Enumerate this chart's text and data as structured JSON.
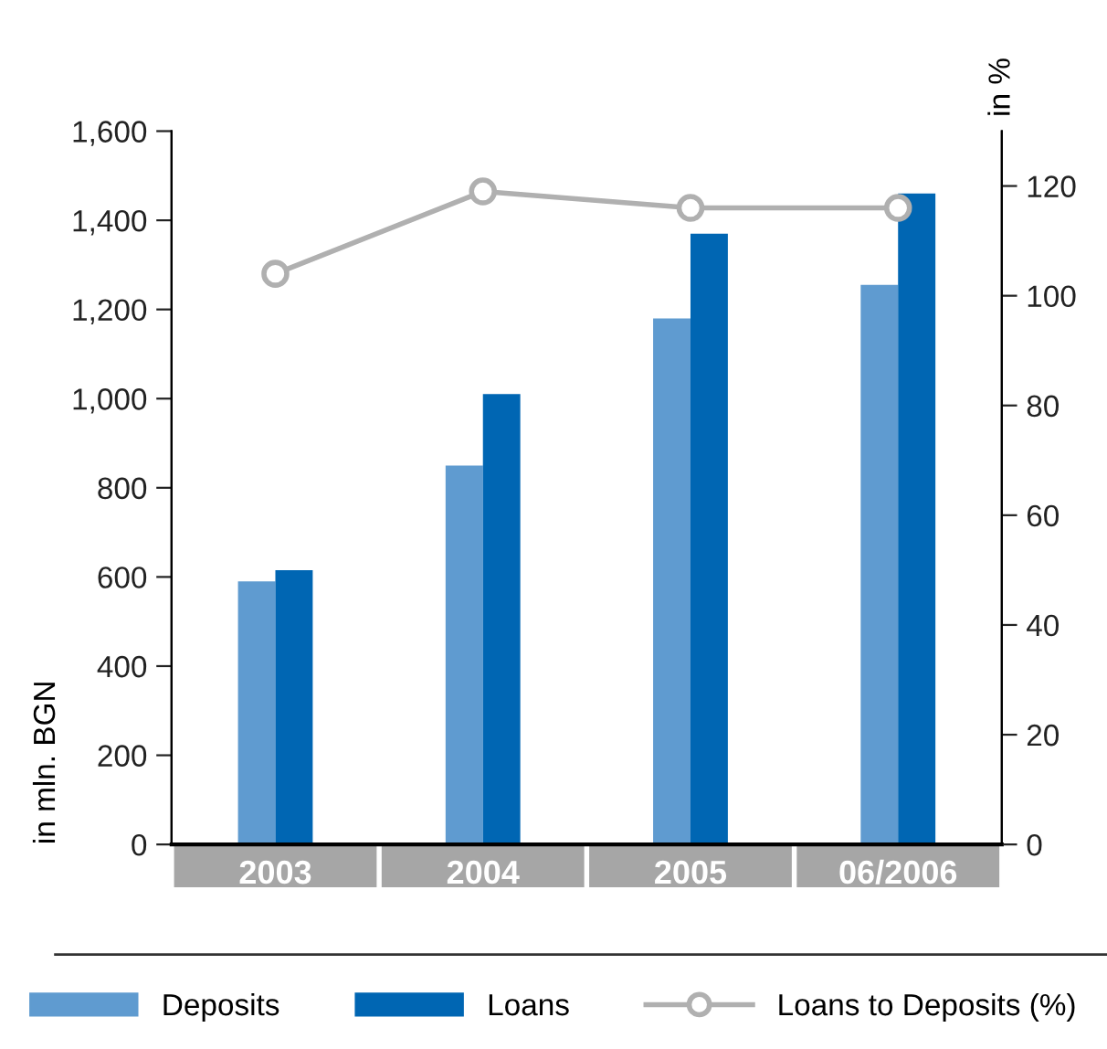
{
  "chart_data": {
    "type": "bar",
    "categories": [
      "2003",
      "2004",
      "2005",
      "06/2006"
    ],
    "ylabel": "in mln. BGN",
    "y2label": "in %",
    "series": [
      {
        "name": "Deposits",
        "color": "#5f9bd0",
        "values": [
          590,
          850,
          1180,
          1255
        ]
      },
      {
        "name": "Loans",
        "color": "#0066b3",
        "values": [
          615,
          1010,
          1370,
          1460
        ]
      },
      {
        "name": "Loans to Deposits (%)",
        "type": "line",
        "axis": "y2",
        "color": "#b0b0b0",
        "marker": "circle",
        "values": [
          104,
          119,
          116,
          116
        ]
      }
    ],
    "ylim": [
      0,
      1600
    ],
    "yticks": [
      0,
      {
        "value": 200,
        "label": "200"
      },
      {
        "value": 400,
        "label": "400"
      },
      {
        "value": 600,
        "label": "600"
      },
      {
        "value": 800,
        "label": "800"
      },
      {
        "value": 1000,
        "label": "1,000"
      },
      {
        "value": 1200,
        "label": "1,200"
      },
      {
        "value": 1400,
        "label": "1,400"
      },
      {
        "value": 1600,
        "label": "1,600"
      }
    ],
    "y2lim": [
      0,
      130
    ],
    "y2ticks": [
      0,
      20,
      40,
      60,
      80,
      100,
      120
    ],
    "grid": false,
    "legend": "bottom"
  }
}
